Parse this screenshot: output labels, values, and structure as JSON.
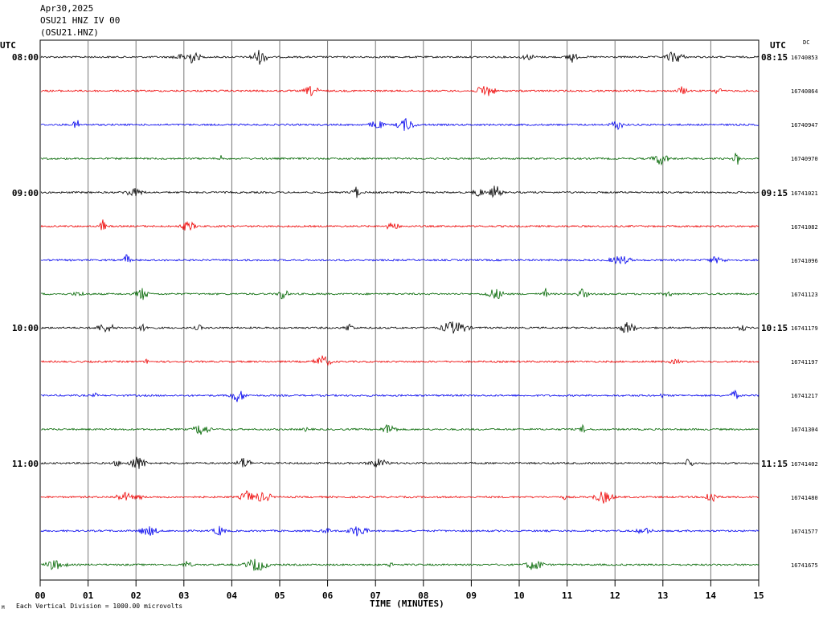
{
  "header": {
    "date": "Apr30,2025",
    "station": "OSU21 HNZ IV 00",
    "channel": "(OSU21.HNZ)"
  },
  "left_tz": "UTC",
  "right_tz": "UTC",
  "dc_label": "DC",
  "footer_text": "Each Vertical Division = 1000.00 microvolts",
  "footer_mark": "M",
  "chart_data": {
    "type": "line",
    "xlabel": "TIME (MINUTES)",
    "xlim": [
      0,
      15
    ],
    "x_ticks": [
      "00",
      "01",
      "02",
      "03",
      "04",
      "05",
      "06",
      "07",
      "08",
      "09",
      "10",
      "11",
      "12",
      "13",
      "14",
      "15"
    ],
    "trace_colors": [
      "#000000",
      "#ee0000",
      "#0000ee",
      "#006600"
    ],
    "rows": [
      {
        "left_time": "08:00",
        "right_time": "08:15",
        "count": "16740853"
      },
      {
        "left_time": "",
        "right_time": "",
        "count": "16740864"
      },
      {
        "left_time": "",
        "right_time": "",
        "count": "16740947"
      },
      {
        "left_time": "",
        "right_time": "",
        "count": "16740970"
      },
      {
        "left_time": "09:00",
        "right_time": "09:15",
        "count": "16741021"
      },
      {
        "left_time": "",
        "right_time": "",
        "count": "16741082"
      },
      {
        "left_time": "",
        "right_time": "",
        "count": "16741096"
      },
      {
        "left_time": "",
        "right_time": "",
        "count": "16741123"
      },
      {
        "left_time": "10:00",
        "right_time": "10:15",
        "count": "16741179"
      },
      {
        "left_time": "",
        "right_time": "",
        "count": "16741197"
      },
      {
        "left_time": "",
        "right_time": "",
        "count": "16741217"
      },
      {
        "left_time": "",
        "right_time": "",
        "count": "16741304"
      },
      {
        "left_time": "11:00",
        "right_time": "11:15",
        "count": "16741402"
      },
      {
        "left_time": "",
        "right_time": "",
        "count": "16741480"
      },
      {
        "left_time": "",
        "right_time": "",
        "count": "16741577"
      },
      {
        "left_time": "",
        "right_time": "",
        "count": "16741675"
      }
    ]
  }
}
